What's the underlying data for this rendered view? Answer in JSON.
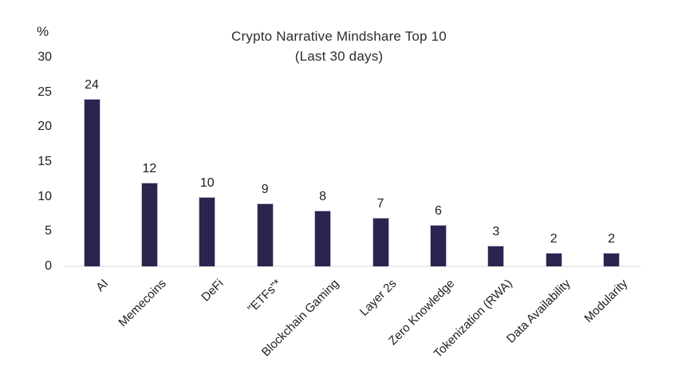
{
  "chart_data": {
    "type": "bar",
    "title": "Crypto Narrative Mindshare Top 10",
    "subtitle": "(Last 30 days)",
    "ylabel": "%",
    "categories": [
      "AI",
      "Memecoins",
      "DeFi",
      "\"ETFs\"*",
      "Blockchain Gaming",
      "Layer 2s",
      "Zero Knowledge",
      "Tokenization (RWA)",
      "Data Availability",
      "Modularity"
    ],
    "values": [
      24,
      12,
      10,
      9,
      8,
      7,
      6,
      3,
      2,
      2
    ],
    "value_labels": [
      "24",
      "12",
      "10",
      "9",
      "8",
      "7",
      "6",
      "3",
      "2",
      "2"
    ],
    "yticks": [
      30,
      25,
      20,
      15,
      10,
      5,
      0
    ],
    "ylim": [
      0,
      30
    ],
    "grid": false,
    "legend": "none",
    "bar_color": "#2c234f",
    "bar_border_color": "#c7c1d8",
    "axis_line_color": "#eaeaea",
    "text_color": "#1d1d1d"
  }
}
